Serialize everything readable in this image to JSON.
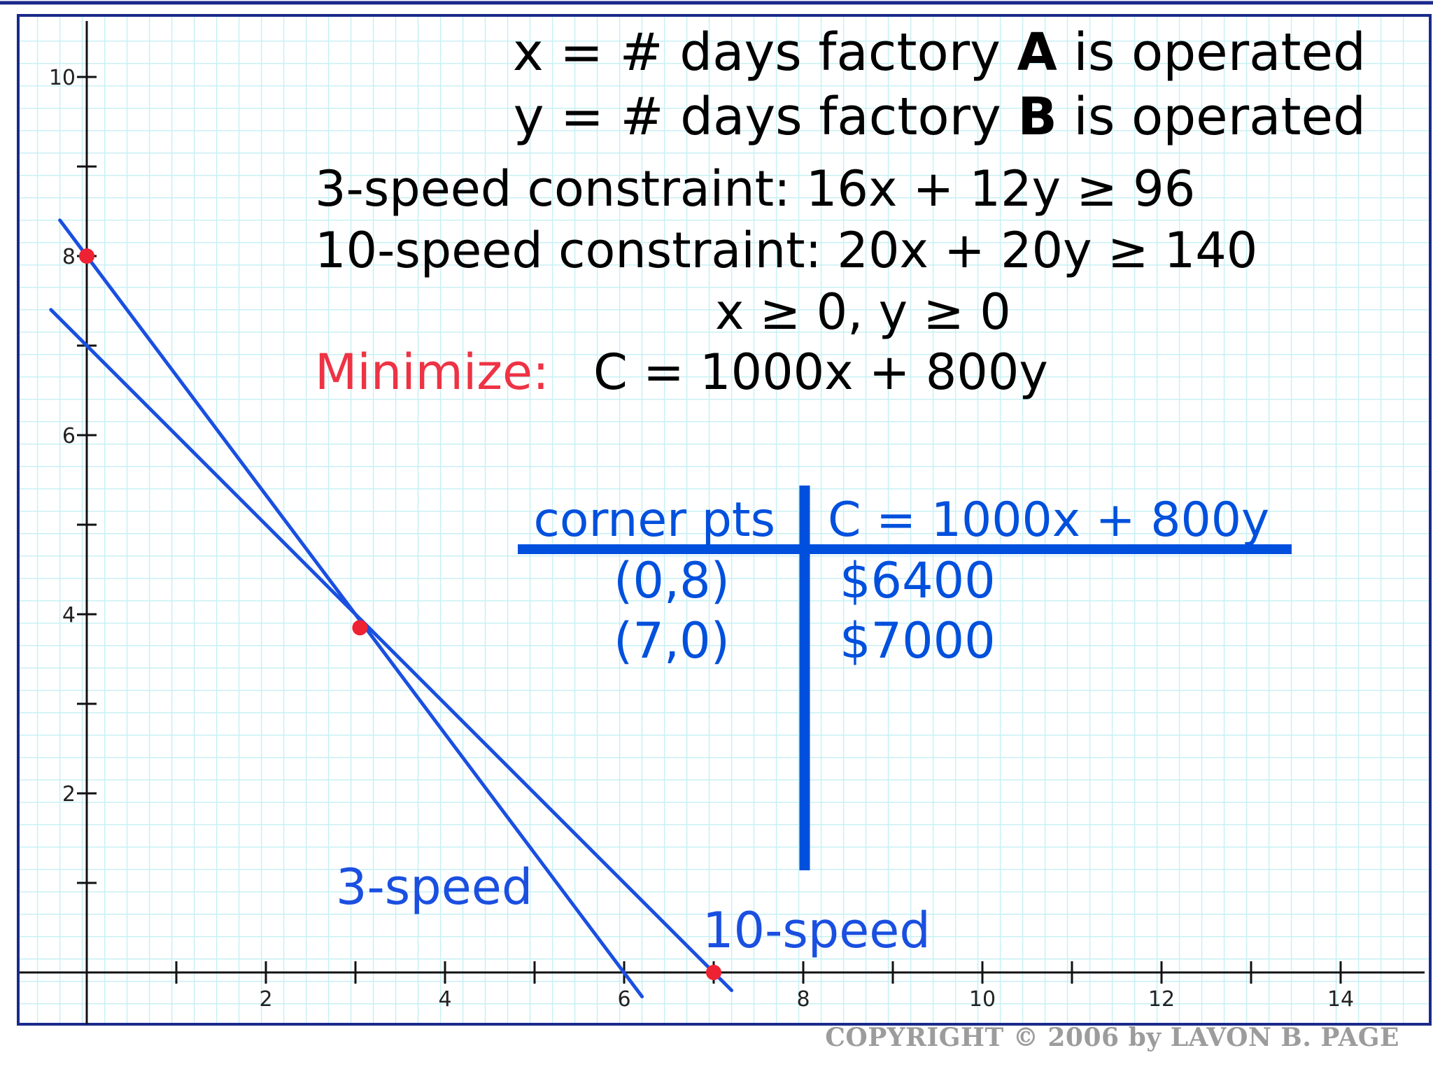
{
  "header": {
    "def_x_prefix": "x = # days factory ",
    "def_x_bold": "A",
    "def_x_suffix": " is operated",
    "def_y_prefix": "y = # days factory ",
    "def_y_bold": "B",
    "def_y_suffix": " is operated"
  },
  "constraints": {
    "three_speed": "3-speed constraint: 16x + 12y ≥ 96",
    "ten_speed": "10-speed constraint: 20x + 20y ≥ 140",
    "nonneg": "x ≥ 0, y ≥ 0",
    "minimize_label": "Minimize:",
    "objective": "C = 1000x + 800y"
  },
  "table": {
    "header_left": "corner pts",
    "header_right": "C = 1000x + 800y",
    "rows": [
      {
        "point": "(0,8)",
        "cost": "$6400"
      },
      {
        "point": "(7,0)",
        "cost": "$7000"
      }
    ]
  },
  "chart_data": {
    "type": "line",
    "xlim": [
      -0.8,
      14.8
    ],
    "ylim": [
      -0.6,
      10.6
    ],
    "x_ticks": [
      2,
      4,
      6,
      8,
      10,
      12,
      14
    ],
    "y_ticks": [
      2,
      4,
      6,
      8,
      10
    ],
    "grid": true,
    "series": [
      {
        "name": "3-speed",
        "x": [
          -0.3,
          6.2
        ],
        "y": [
          8.4,
          -0.27
        ]
      },
      {
        "name": "10-speed",
        "x": [
          -0.4,
          7.2
        ],
        "y": [
          7.4,
          -0.2
        ]
      }
    ],
    "points": [
      {
        "x": 0,
        "y": 8
      },
      {
        "x": 3.05,
        "y": 3.85
      },
      {
        "x": 7,
        "y": 0
      }
    ]
  },
  "footer": {
    "copyright": "COPYRIGHT © 2006 by LAVON B. PAGE"
  },
  "colors": {
    "grid": "#c8f0f4",
    "axis": "#111111",
    "line": "#1a4fe0",
    "point": "#ee2233",
    "frame": "#1a2a8a",
    "table": "#0050dd",
    "minimize": "#ee3344",
    "copyright": "#9c9c9c"
  }
}
